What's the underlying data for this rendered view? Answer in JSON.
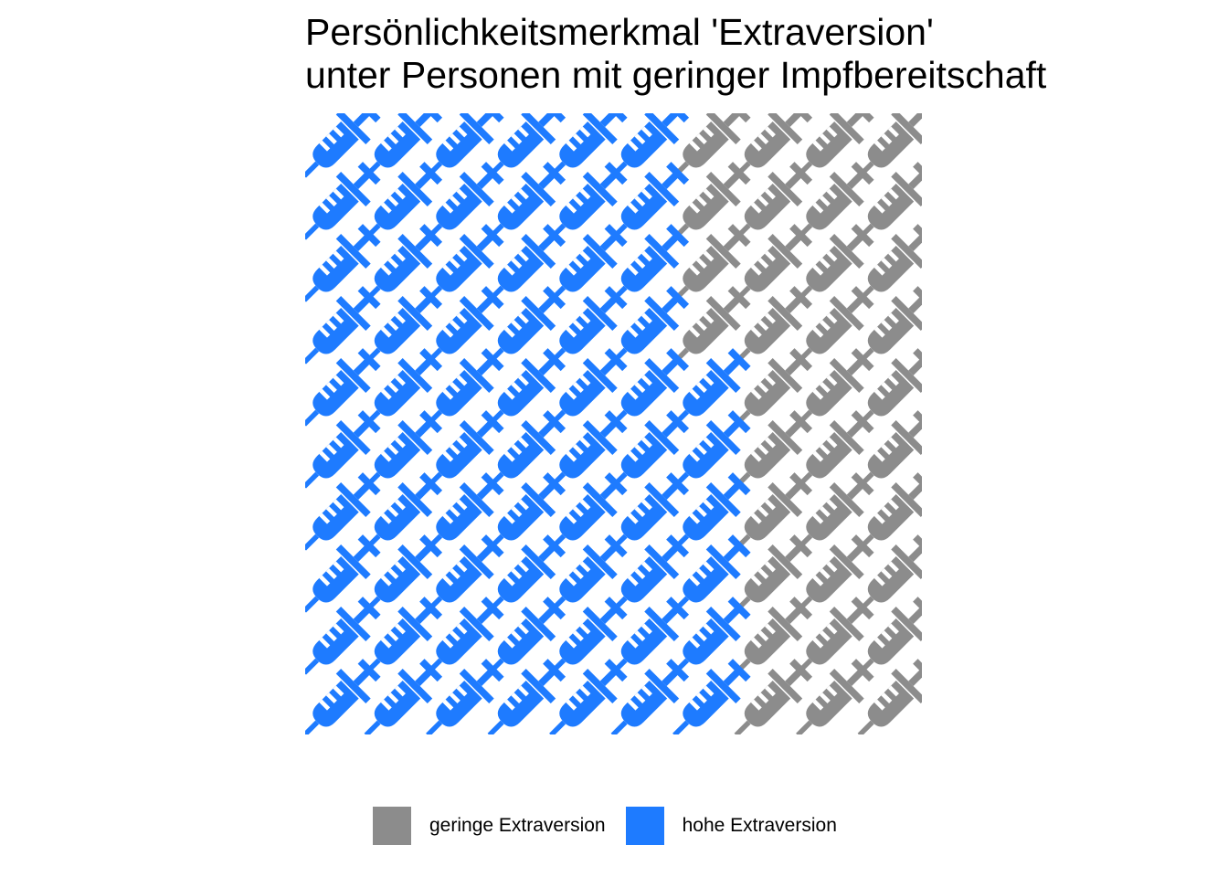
{
  "chart_data": {
    "type": "waffle",
    "title": "Persönlichkeitsmerkmal 'Extraversion'",
    "subtitle": "unter Personen mit geringer Impfbereitschaft",
    "icon": "syringe-icon",
    "grid": {
      "rows": 10,
      "cols": 10
    },
    "fill_order": "column-wise from bottom-left",
    "categories": [
      "hohe Extraversion",
      "geringe Extraversion"
    ],
    "values": [
      66,
      34
    ],
    "colors": [
      "#1e7bff",
      "#8c8c8c"
    ],
    "legend": {
      "position": "bottom",
      "items": [
        {
          "label": "geringe Extraversion",
          "color": "#8c8c8c"
        },
        {
          "label": "hohe Extraversion",
          "color": "#1e7bff"
        }
      ]
    }
  }
}
